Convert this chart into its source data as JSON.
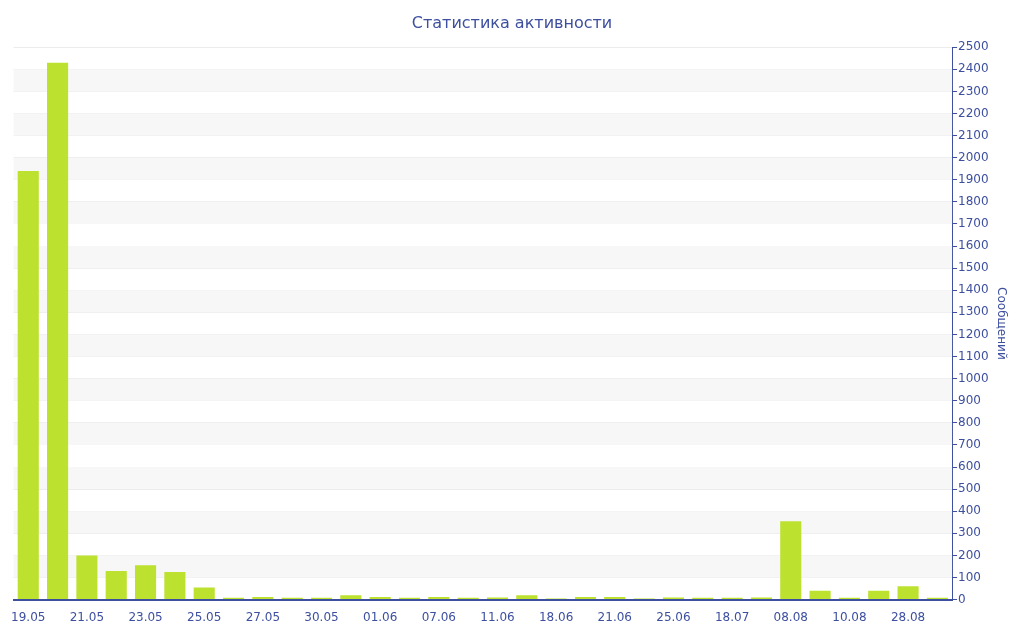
{
  "chart_data": {
    "type": "bar",
    "title": "Статистика активности",
    "ylabel": "Сообщений",
    "categories": [
      "19.05",
      null,
      "21.05",
      null,
      "23.05",
      null,
      "25.05",
      null,
      "27.05",
      null,
      "30.05",
      null,
      "01.06",
      null,
      "07.06",
      null,
      "11.06",
      null,
      "18.06",
      null,
      "21.06",
      null,
      "25.06",
      null,
      "18.07",
      null,
      "08.08",
      null,
      "10.08",
      null,
      "28.08",
      null
    ],
    "values": [
      1940,
      2430,
      200,
      130,
      155,
      125,
      55,
      8,
      12,
      8,
      8,
      20,
      12,
      8,
      12,
      8,
      10,
      20,
      5,
      12,
      12,
      5,
      10,
      8,
      8,
      10,
      355,
      40,
      8,
      40,
      60,
      8
    ],
    "color": "#bce22f",
    "ylim": [
      0,
      2500
    ],
    "yticks": [
      0,
      100,
      200,
      300,
      400,
      500,
      600,
      700,
      800,
      900,
      1000,
      1100,
      1200,
      1300,
      1400,
      1500,
      1600,
      1700,
      1800,
      1900,
      2000,
      2100,
      2200,
      2300,
      2400,
      2500
    ],
    "grid": "y",
    "legend": false
  }
}
